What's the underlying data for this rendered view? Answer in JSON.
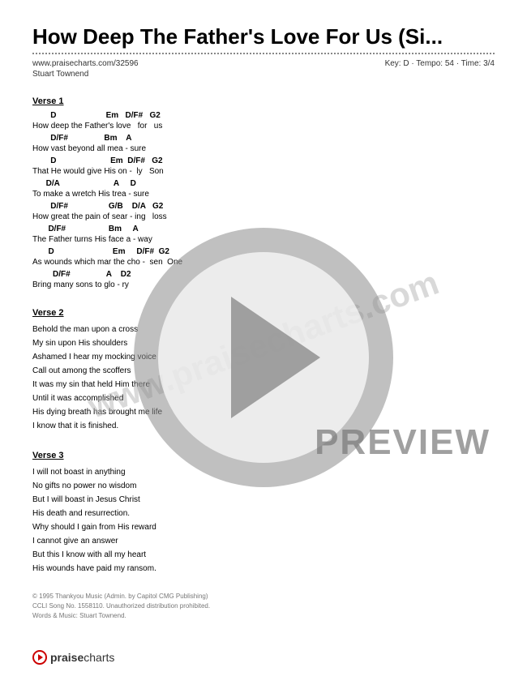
{
  "title": "How Deep The Father's Love For Us (Si...",
  "source_url": "www.praisecharts.com/32596",
  "artist": "Stuart Townend",
  "meta": {
    "key": "D",
    "tempo": "54",
    "time": "3/4"
  },
  "meta_display": "Key: D · Tempo: 54 · Time: 3/4",
  "watermark_text": "www.praisecharts.com",
  "preview_label": "PREVIEW",
  "footer": {
    "brand_bold": "praise",
    "brand_light": "charts"
  },
  "sections": [
    {
      "name": "Verse 1",
      "lines": [
        {
          "chords": "        D                      Em   D/F#   G2",
          "lyric": "How deep the Father's love   for   us"
        },
        {
          "chords": "        D/F#                Bm    A",
          "lyric": "How vast beyond all mea - sure"
        },
        {
          "chords": "        D                        Em  D/F#   G2",
          "lyric": "That He would give His on -  ly   Son"
        },
        {
          "chords": "      D/A                        A     D",
          "lyric": "To make a wretch His trea - sure"
        },
        {
          "chords": "        D/F#                  G/B    D/A   G2",
          "lyric": "How great the pain of sear - ing   loss"
        },
        {
          "chords": "       D/F#                   Bm     A",
          "lyric": "The Father turns His face a - way"
        },
        {
          "chords": "       D                          Em     D/F#  G2",
          "lyric": "As wounds which mar the cho -  sen  One"
        },
        {
          "chords": "         D/F#                A    D2",
          "lyric": "Bring many sons to glo - ry"
        }
      ]
    },
    {
      "name": "Verse 2",
      "plain": [
        "Behold the man upon a cross",
        "My sin upon His shoulders",
        "Ashamed I hear my mocking voice",
        "Call out among the scoffers",
        "It was my sin that held Him there",
        "Until it was accomplished",
        "His dying breath has brought me life",
        "I know that it is finished."
      ]
    },
    {
      "name": "Verse 3",
      "plain": [
        "I will not boast in anything",
        "No gifts no power no wisdom",
        "But I will boast in Jesus Christ",
        "His death and resurrection.",
        "Why should I gain from His reward",
        "I cannot give an answer",
        "But this I know with all my heart",
        "His wounds have paid my ransom."
      ]
    }
  ],
  "copyright": [
    "© 1995 Thankyou Music (Admin. by Capitol CMG Publishing)",
    "CCLI Song No. 1558110. Unauthorized distribution prohibited.",
    "Words & Music: Stuart Townend."
  ],
  "colors": {
    "text": "#000000",
    "muted": "#777777",
    "accent": "#cc0000",
    "overlay_gray": "rgba(140,140,140,0.6)"
  }
}
